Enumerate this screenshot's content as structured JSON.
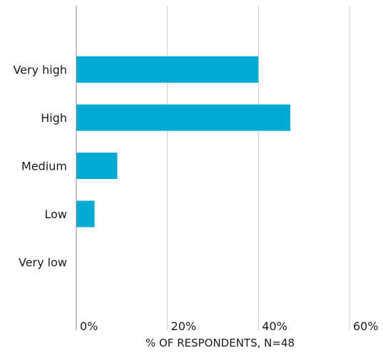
{
  "chart_data": {
    "type": "bar",
    "orientation": "horizontal",
    "categories": [
      "Very high",
      "High",
      "Medium",
      "Low",
      "Very low"
    ],
    "values": [
      40,
      47,
      9,
      4,
      0
    ],
    "xlabel": "% OF RESPONDENTS, N=48",
    "ylabel": "",
    "xlim": [
      0,
      60
    ],
    "xticks": [
      "0%",
      "20%",
      "40%",
      "60%"
    ],
    "grid": true,
    "bar_color": "#00aad2",
    "grid_color": "#cccccc",
    "axis_color": "#888888"
  }
}
